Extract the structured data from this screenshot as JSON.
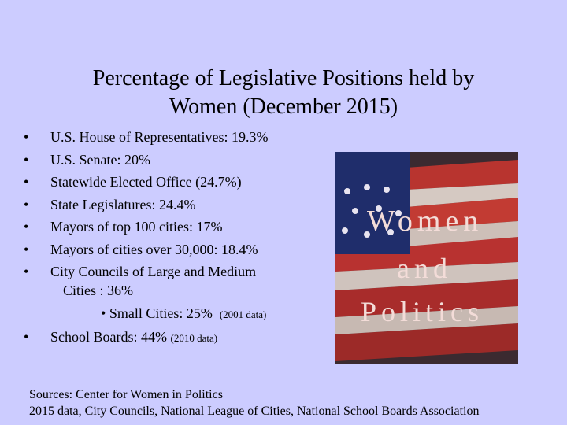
{
  "title": [
    "Percentage of Legislative Positions held by",
    "Women (December 2015)"
  ],
  "items": [
    "U.S. House of Representatives:  19.3%",
    "U.S. Senate:  20%",
    "Statewide Elected Office (24.7%)",
    "State Legislatures: 24.4%",
    "Mayors of top 100 cities: 17%",
    "Mayors of cities over 30,000: 18.4%",
    [
      "City Councils of Large and Medium",
      "Cities : 36%"
    ]
  ],
  "subitem": {
    "text": "Small Cities:  25%",
    "note": "(2001 data)"
  },
  "last_item": {
    "text": "School Boards: 44%",
    "note": "(2010 data)"
  },
  "image_text": [
    "Women",
    "and",
    "Politics"
  ],
  "sources": [
    "Sources: Center for Women in Politics",
    "2015 data, City Councils, National League of Cities, National School Boards Association"
  ]
}
